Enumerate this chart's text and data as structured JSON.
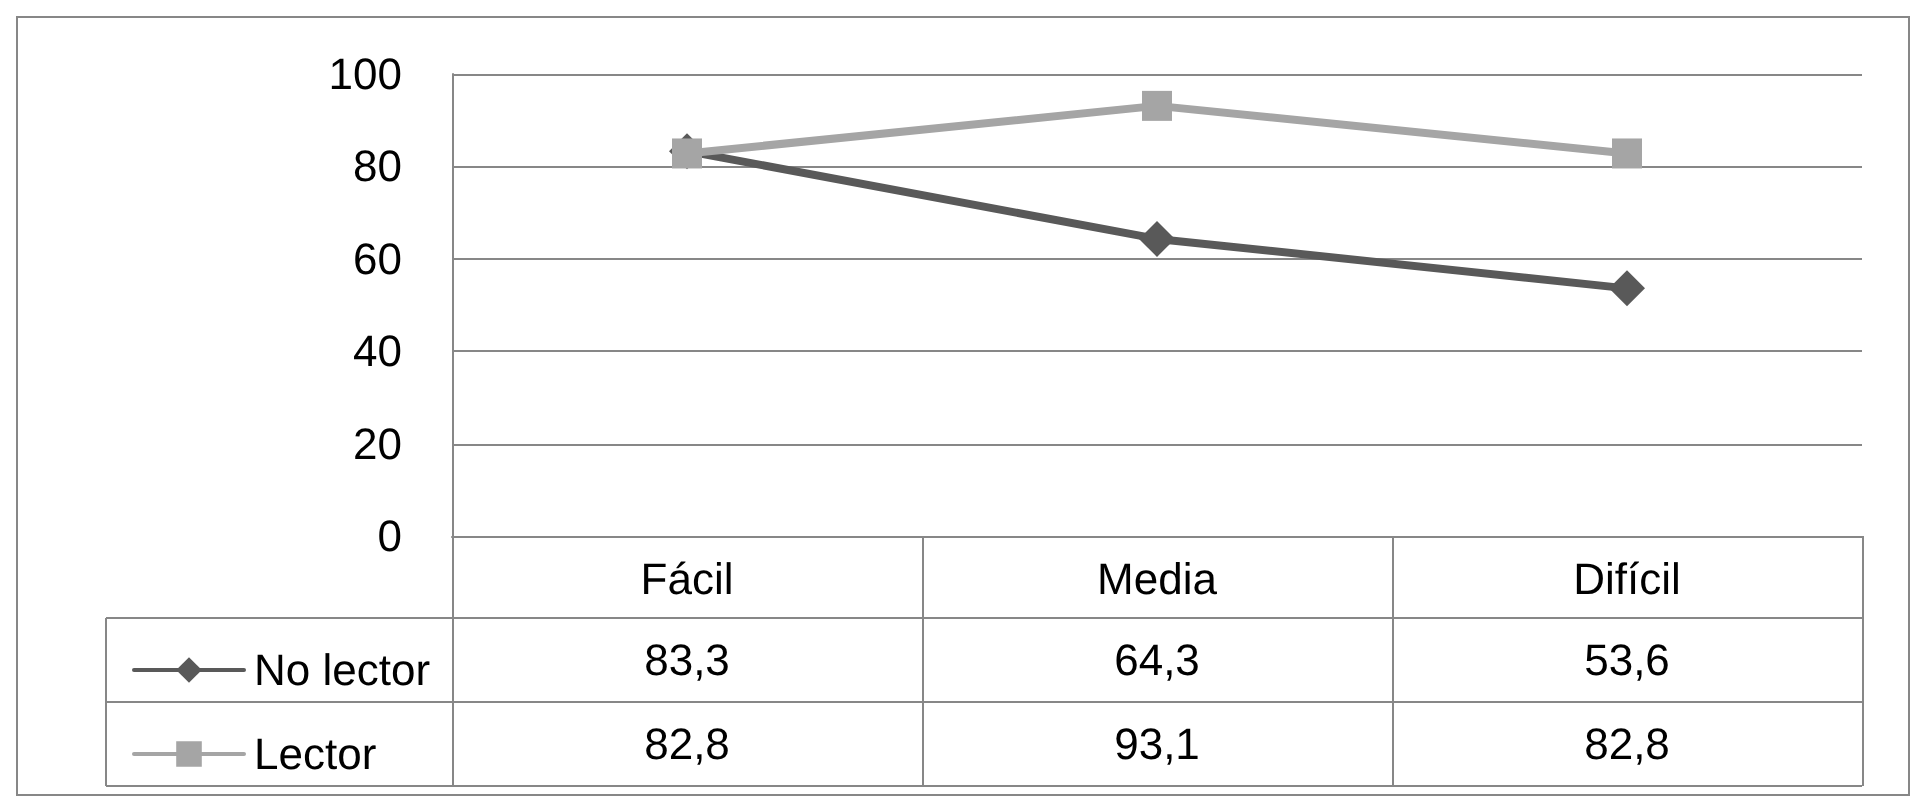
{
  "chart_data": {
    "type": "line",
    "categories": [
      "Fácil",
      "Media",
      "Difícil"
    ],
    "series": [
      {
        "name": "No lector",
        "color": "#595959",
        "marker": "diamond",
        "values": [
          83.3,
          64.3,
          53.6
        ],
        "value_labels": [
          "83,3",
          "64,3",
          "53,6"
        ]
      },
      {
        "name": "Lector",
        "color": "#a5a5a5",
        "marker": "square",
        "values": [
          82.8,
          93.1,
          82.8
        ],
        "value_labels": [
          "82,8",
          "93,1",
          "82,8"
        ]
      }
    ],
    "ylim": [
      0,
      100
    ],
    "yticks": [
      0,
      20,
      40,
      60,
      80,
      100
    ],
    "grid": "y",
    "legend": "bottom left"
  }
}
